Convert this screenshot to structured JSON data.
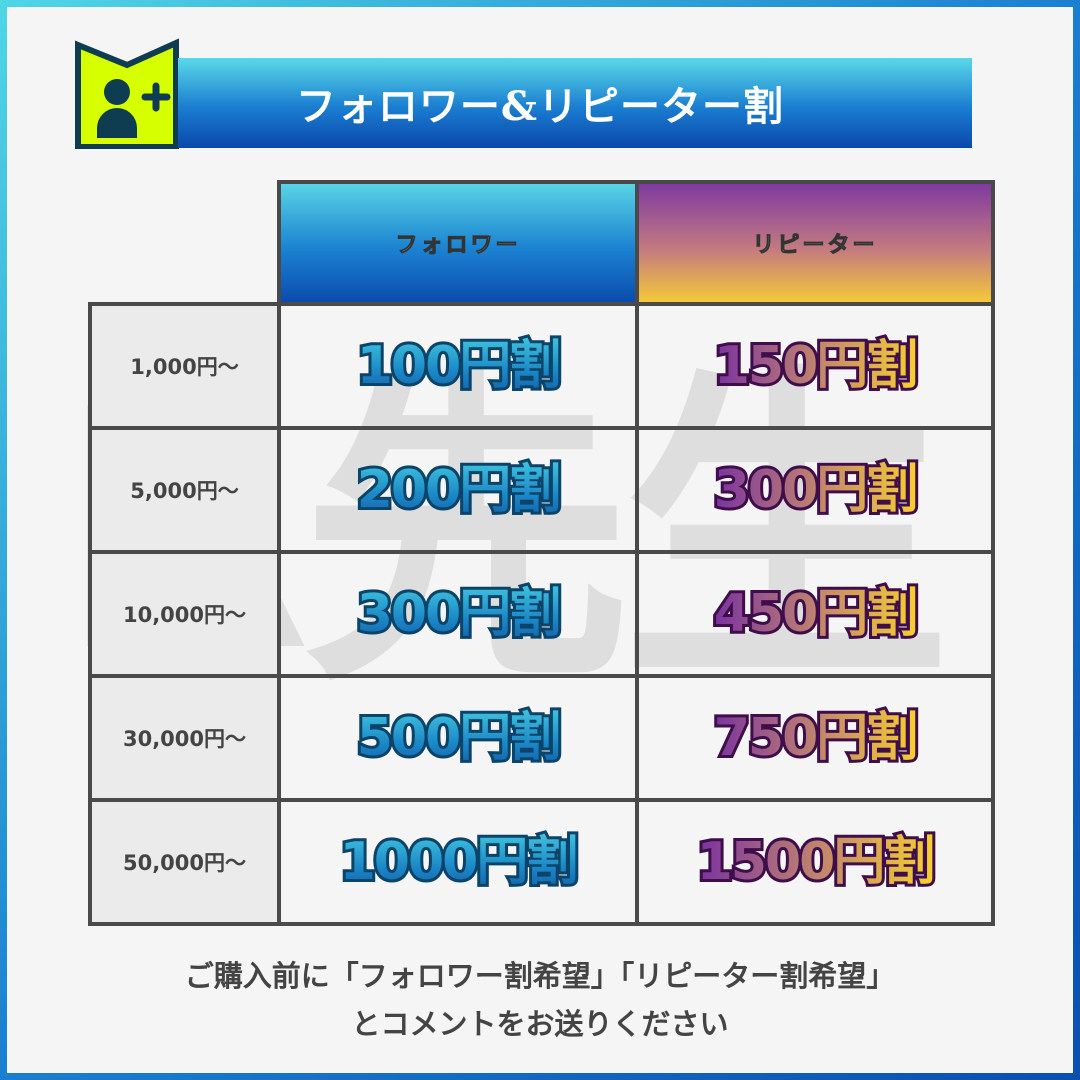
{
  "title": "フォロワー&リピーター割",
  "icon": "user-plus-icon",
  "watermark": "R先生",
  "colors": {
    "accent_yellow": "#d6ff00",
    "follower_blue": "#1b82d0",
    "repeater_purple": "#7e3aa0",
    "repeater_gold": "#f4c93a"
  },
  "table": {
    "headers": [
      "フォロワー",
      "リピーター"
    ],
    "rows": [
      {
        "label": "1,000円〜",
        "follower": "100円割",
        "repeater": "150円割"
      },
      {
        "label": "5,000円〜",
        "follower": "200円割",
        "repeater": "300円割"
      },
      {
        "label": "10,000円〜",
        "follower": "300円割",
        "repeater": "450円割"
      },
      {
        "label": "30,000円〜",
        "follower": "500円割",
        "repeater": "750円割"
      },
      {
        "label": "50,000円〜",
        "follower": "1000円割",
        "repeater": "1500円割"
      }
    ]
  },
  "note": {
    "line1": "ご購入前に「フォロワー割希望」「リピーター割希望」",
    "line2": "とコメントをお送りください"
  }
}
